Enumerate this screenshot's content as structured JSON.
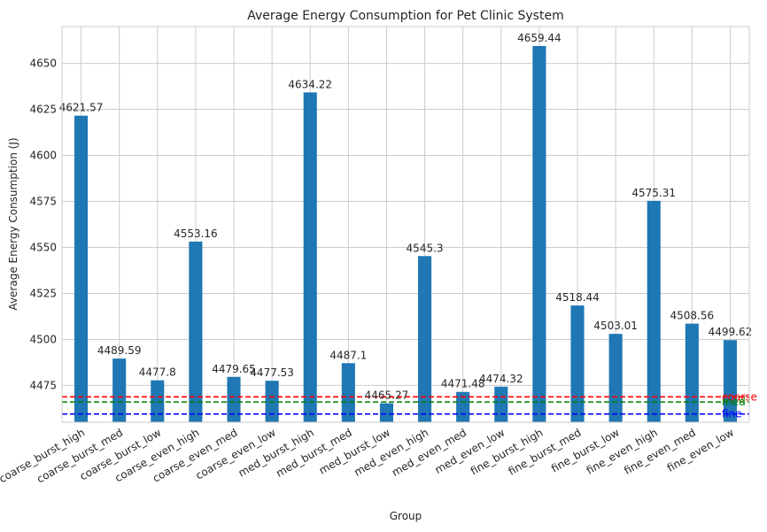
{
  "chart_data": {
    "type": "bar",
    "title": "Average Energy Consumption for Pet Clinic System",
    "xlabel": "Group",
    "ylabel": "Average Energy Consumption (J)",
    "ylim": [
      4455,
      4670
    ],
    "yticks": [
      4475,
      4500,
      4525,
      4550,
      4575,
      4600,
      4625,
      4650
    ],
    "grid": true,
    "bar_color": "#1f77b4",
    "categories": [
      "coarse_burst_high",
      "coarse_burst_med",
      "coarse_burst_low",
      "coarse_even_high",
      "coarse_even_med",
      "coarse_even_low",
      "med_burst_high",
      "med_burst_med",
      "med_burst_low",
      "med_even_high",
      "med_even_med",
      "med_even_low",
      "fine_burst_high",
      "fine_burst_med",
      "fine_burst_low",
      "fine_even_high",
      "fine_even_med",
      "fine_even_low"
    ],
    "values": [
      4621.57,
      4489.59,
      4477.8,
      4553.16,
      4479.65,
      4477.53,
      4634.22,
      4487.1,
      4465.27,
      4545.3,
      4471.48,
      4474.32,
      4659.44,
      4518.44,
      4503.01,
      4575.31,
      4508.56,
      4499.62
    ],
    "data_labels": [
      "4621.57",
      "4489.59",
      "4477.8",
      "4553.16",
      "4479.65",
      "4477.53",
      "4634.22",
      "4487.1",
      "4465.27",
      "4545.3",
      "4471.48",
      "4474.32",
      "4659.44",
      "4518.44",
      "4503.01",
      "4575.31",
      "4508.56",
      "4499.62"
    ],
    "reference_lines": [
      {
        "label": "coarse",
        "value": 4468.8,
        "color": "#ff0000"
      },
      {
        "label": "med",
        "value": 4466.0,
        "color": "#008000"
      },
      {
        "label": "fine",
        "value": 4459.5,
        "color": "#0000ff"
      }
    ]
  }
}
